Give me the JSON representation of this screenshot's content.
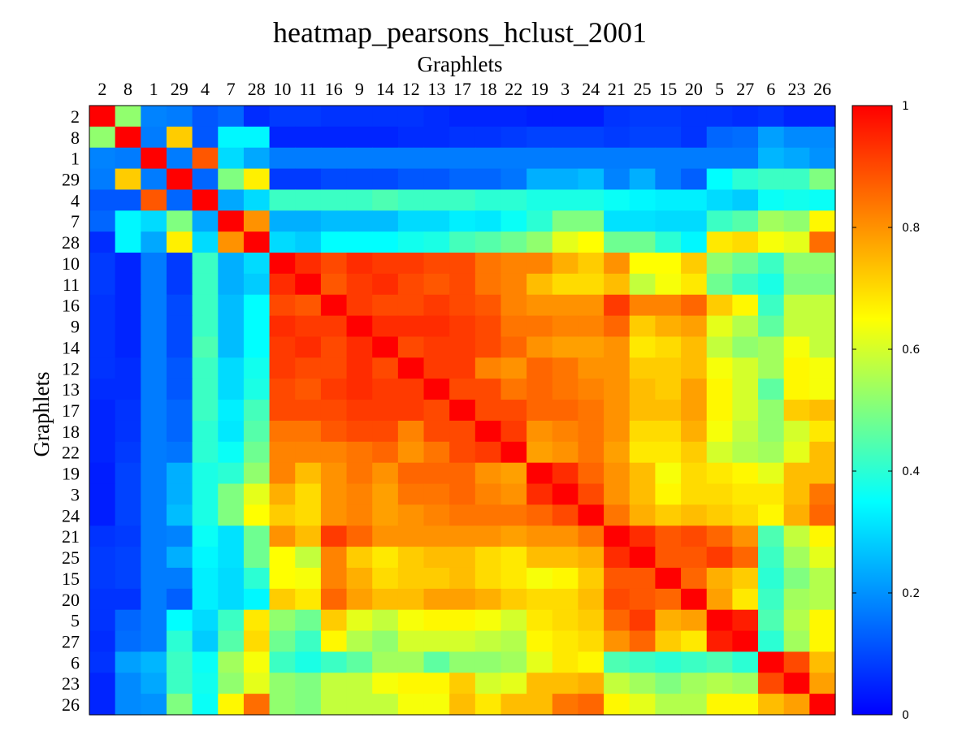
{
  "chart_data": {
    "type": "heatmap",
    "title": "heatmap_pearsons_hclust_2001",
    "xlabel": "Graphlets",
    "ylabel": "Graphlets",
    "labels": [
      "2",
      "8",
      "1",
      "29",
      "4",
      "7",
      "28",
      "10",
      "11",
      "16",
      "9",
      "14",
      "12",
      "13",
      "17",
      "18",
      "22",
      "19",
      "3",
      "24",
      "21",
      "25",
      "15",
      "20",
      "5",
      "27",
      "6",
      "23",
      "26"
    ],
    "colorbar": {
      "min": 0,
      "max": 1,
      "ticks": [
        0,
        0.2,
        0.4,
        0.6,
        0.8,
        1
      ],
      "tick_labels": [
        "0",
        "0.2",
        "0.4",
        "0.6",
        "0.8",
        "1"
      ],
      "colormap": "jet"
    },
    "values": [
      [
        1.0,
        0.52,
        0.18,
        0.17,
        0.12,
        0.14,
        0.06,
        0.08,
        0.08,
        0.07,
        0.07,
        0.07,
        0.07,
        0.06,
        0.05,
        0.05,
        0.05,
        0.04,
        0.04,
        0.04,
        0.07,
        0.08,
        0.08,
        0.07,
        0.07,
        0.06,
        0.07,
        0.05,
        0.05
      ],
      [
        0.52,
        1.0,
        0.17,
        0.72,
        0.12,
        0.34,
        0.34,
        0.05,
        0.05,
        0.05,
        0.05,
        0.05,
        0.06,
        0.06,
        0.07,
        0.07,
        0.08,
        0.09,
        0.09,
        0.09,
        0.08,
        0.09,
        0.09,
        0.07,
        0.14,
        0.15,
        0.22,
        0.19,
        0.19
      ],
      [
        0.18,
        0.17,
        1.0,
        0.17,
        0.88,
        0.3,
        0.23,
        0.17,
        0.17,
        0.17,
        0.17,
        0.17,
        0.17,
        0.17,
        0.17,
        0.17,
        0.17,
        0.17,
        0.17,
        0.17,
        0.17,
        0.17,
        0.17,
        0.17,
        0.17,
        0.17,
        0.25,
        0.23,
        0.2
      ],
      [
        0.17,
        0.72,
        0.17,
        1.0,
        0.14,
        0.5,
        0.67,
        0.08,
        0.08,
        0.1,
        0.1,
        0.1,
        0.12,
        0.12,
        0.14,
        0.14,
        0.16,
        0.24,
        0.24,
        0.26,
        0.18,
        0.24,
        0.17,
        0.13,
        0.35,
        0.4,
        0.42,
        0.42,
        0.5
      ],
      [
        0.12,
        0.12,
        0.88,
        0.14,
        1.0,
        0.23,
        0.3,
        0.42,
        0.42,
        0.42,
        0.42,
        0.44,
        0.42,
        0.42,
        0.42,
        0.4,
        0.4,
        0.38,
        0.38,
        0.38,
        0.36,
        0.34,
        0.33,
        0.33,
        0.3,
        0.28,
        0.36,
        0.37,
        0.36
      ],
      [
        0.14,
        0.34,
        0.3,
        0.5,
        0.23,
        1.0,
        0.8,
        0.24,
        0.24,
        0.26,
        0.26,
        0.26,
        0.3,
        0.3,
        0.33,
        0.32,
        0.36,
        0.4,
        0.5,
        0.5,
        0.31,
        0.31,
        0.3,
        0.3,
        0.42,
        0.45,
        0.54,
        0.52,
        0.66
      ],
      [
        0.06,
        0.34,
        0.23,
        0.67,
        0.3,
        0.8,
        1.0,
        0.3,
        0.28,
        0.35,
        0.35,
        0.35,
        0.37,
        0.38,
        0.43,
        0.45,
        0.48,
        0.52,
        0.62,
        0.65,
        0.48,
        0.48,
        0.4,
        0.34,
        0.68,
        0.7,
        0.64,
        0.62,
        0.85
      ],
      [
        0.08,
        0.05,
        0.17,
        0.08,
        0.42,
        0.24,
        0.3,
        1.0,
        0.94,
        0.9,
        0.94,
        0.92,
        0.92,
        0.9,
        0.9,
        0.84,
        0.82,
        0.82,
        0.76,
        0.72,
        0.8,
        0.65,
        0.65,
        0.72,
        0.52,
        0.48,
        0.42,
        0.52,
        0.52
      ],
      [
        0.08,
        0.05,
        0.17,
        0.08,
        0.42,
        0.24,
        0.28,
        0.94,
        1.0,
        0.88,
        0.92,
        0.94,
        0.9,
        0.88,
        0.9,
        0.84,
        0.82,
        0.74,
        0.7,
        0.7,
        0.74,
        0.58,
        0.64,
        0.68,
        0.48,
        0.42,
        0.38,
        0.5,
        0.5
      ],
      [
        0.07,
        0.05,
        0.17,
        0.1,
        0.42,
        0.26,
        0.35,
        0.9,
        0.88,
        1.0,
        0.92,
        0.9,
        0.9,
        0.92,
        0.9,
        0.88,
        0.82,
        0.8,
        0.8,
        0.8,
        0.92,
        0.82,
        0.82,
        0.86,
        0.72,
        0.66,
        0.42,
        0.58,
        0.58
      ],
      [
        0.07,
        0.05,
        0.17,
        0.1,
        0.42,
        0.26,
        0.35,
        0.94,
        0.92,
        0.92,
        1.0,
        0.94,
        0.94,
        0.94,
        0.92,
        0.9,
        0.84,
        0.84,
        0.82,
        0.82,
        0.86,
        0.72,
        0.76,
        0.78,
        0.62,
        0.56,
        0.46,
        0.58,
        0.58
      ],
      [
        0.07,
        0.05,
        0.17,
        0.1,
        0.44,
        0.26,
        0.35,
        0.92,
        0.94,
        0.9,
        0.94,
        1.0,
        0.9,
        0.92,
        0.92,
        0.9,
        0.86,
        0.8,
        0.78,
        0.78,
        0.8,
        0.68,
        0.7,
        0.74,
        0.58,
        0.52,
        0.54,
        0.64,
        0.58
      ],
      [
        0.07,
        0.06,
        0.17,
        0.12,
        0.42,
        0.3,
        0.37,
        0.92,
        0.9,
        0.9,
        0.94,
        0.9,
        1.0,
        0.92,
        0.92,
        0.82,
        0.8,
        0.86,
        0.84,
        0.8,
        0.8,
        0.72,
        0.72,
        0.74,
        0.64,
        0.6,
        0.54,
        0.66,
        0.64
      ],
      [
        0.06,
        0.06,
        0.17,
        0.12,
        0.42,
        0.3,
        0.38,
        0.9,
        0.88,
        0.92,
        0.94,
        0.92,
        0.92,
        1.0,
        0.9,
        0.9,
        0.84,
        0.86,
        0.84,
        0.82,
        0.8,
        0.74,
        0.72,
        0.78,
        0.66,
        0.6,
        0.46,
        0.66,
        0.64
      ],
      [
        0.05,
        0.07,
        0.17,
        0.14,
        0.42,
        0.33,
        0.43,
        0.9,
        0.9,
        0.9,
        0.92,
        0.92,
        0.92,
        0.9,
        1.0,
        0.9,
        0.9,
        0.86,
        0.86,
        0.84,
        0.8,
        0.74,
        0.74,
        0.78,
        0.66,
        0.6,
        0.52,
        0.72,
        0.74
      ],
      [
        0.05,
        0.07,
        0.17,
        0.14,
        0.4,
        0.32,
        0.45,
        0.84,
        0.84,
        0.88,
        0.9,
        0.9,
        0.82,
        0.9,
        0.9,
        1.0,
        0.92,
        0.8,
        0.82,
        0.84,
        0.8,
        0.7,
        0.7,
        0.76,
        0.64,
        0.58,
        0.52,
        0.6,
        0.68
      ],
      [
        0.05,
        0.08,
        0.17,
        0.16,
        0.4,
        0.36,
        0.48,
        0.82,
        0.82,
        0.82,
        0.84,
        0.86,
        0.8,
        0.84,
        0.9,
        0.92,
        1.0,
        0.78,
        0.8,
        0.84,
        0.78,
        0.68,
        0.68,
        0.72,
        0.6,
        0.56,
        0.54,
        0.62,
        0.74
      ],
      [
        0.04,
        0.09,
        0.17,
        0.24,
        0.38,
        0.4,
        0.52,
        0.82,
        0.74,
        0.8,
        0.84,
        0.8,
        0.86,
        0.86,
        0.86,
        0.8,
        0.78,
        1.0,
        0.94,
        0.86,
        0.8,
        0.74,
        0.64,
        0.7,
        0.68,
        0.66,
        0.62,
        0.74,
        0.74
      ],
      [
        0.04,
        0.09,
        0.17,
        0.24,
        0.38,
        0.5,
        0.62,
        0.76,
        0.7,
        0.8,
        0.82,
        0.78,
        0.84,
        0.84,
        0.86,
        0.82,
        0.8,
        0.94,
        1.0,
        0.9,
        0.8,
        0.74,
        0.66,
        0.7,
        0.7,
        0.68,
        0.68,
        0.74,
        0.84
      ],
      [
        0.04,
        0.09,
        0.17,
        0.26,
        0.38,
        0.5,
        0.65,
        0.72,
        0.7,
        0.8,
        0.82,
        0.78,
        0.8,
        0.82,
        0.84,
        0.84,
        0.84,
        0.86,
        0.9,
        1.0,
        0.84,
        0.76,
        0.72,
        0.74,
        0.72,
        0.7,
        0.66,
        0.76,
        0.86
      ],
      [
        0.07,
        0.08,
        0.17,
        0.18,
        0.36,
        0.31,
        0.48,
        0.8,
        0.74,
        0.92,
        0.86,
        0.8,
        0.8,
        0.8,
        0.8,
        0.8,
        0.78,
        0.8,
        0.8,
        0.84,
        1.0,
        0.94,
        0.88,
        0.9,
        0.86,
        0.8,
        0.44,
        0.58,
        0.66
      ],
      [
        0.08,
        0.09,
        0.17,
        0.24,
        0.34,
        0.31,
        0.48,
        0.65,
        0.58,
        0.82,
        0.72,
        0.68,
        0.72,
        0.74,
        0.74,
        0.7,
        0.68,
        0.74,
        0.74,
        0.76,
        0.94,
        1.0,
        0.88,
        0.88,
        0.92,
        0.86,
        0.42,
        0.54,
        0.62
      ],
      [
        0.08,
        0.09,
        0.17,
        0.17,
        0.33,
        0.3,
        0.4,
        0.65,
        0.64,
        0.82,
        0.76,
        0.7,
        0.72,
        0.72,
        0.74,
        0.7,
        0.68,
        0.64,
        0.66,
        0.72,
        0.88,
        0.88,
        1.0,
        0.86,
        0.76,
        0.72,
        0.4,
        0.5,
        0.56
      ],
      [
        0.07,
        0.07,
        0.17,
        0.13,
        0.33,
        0.3,
        0.34,
        0.72,
        0.68,
        0.86,
        0.78,
        0.74,
        0.74,
        0.78,
        0.78,
        0.76,
        0.72,
        0.7,
        0.7,
        0.74,
        0.9,
        0.88,
        0.86,
        1.0,
        0.78,
        0.68,
        0.42,
        0.54,
        0.56
      ],
      [
        0.07,
        0.14,
        0.17,
        0.35,
        0.3,
        0.42,
        0.68,
        0.52,
        0.48,
        0.72,
        0.62,
        0.58,
        0.64,
        0.66,
        0.66,
        0.64,
        0.6,
        0.68,
        0.7,
        0.72,
        0.86,
        0.92,
        0.76,
        0.78,
        1.0,
        0.96,
        0.44,
        0.56,
        0.66
      ],
      [
        0.06,
        0.15,
        0.17,
        0.4,
        0.28,
        0.45,
        0.7,
        0.48,
        0.42,
        0.66,
        0.56,
        0.52,
        0.6,
        0.6,
        0.6,
        0.58,
        0.56,
        0.66,
        0.68,
        0.7,
        0.8,
        0.86,
        0.72,
        0.68,
        0.96,
        1.0,
        0.4,
        0.54,
        0.66
      ],
      [
        0.07,
        0.22,
        0.25,
        0.42,
        0.36,
        0.54,
        0.64,
        0.42,
        0.38,
        0.42,
        0.46,
        0.54,
        0.54,
        0.46,
        0.52,
        0.52,
        0.54,
        0.62,
        0.68,
        0.66,
        0.44,
        0.42,
        0.4,
        0.42,
        0.44,
        0.4,
        1.0,
        0.9,
        0.74
      ],
      [
        0.05,
        0.19,
        0.23,
        0.42,
        0.37,
        0.52,
        0.62,
        0.52,
        0.5,
        0.58,
        0.58,
        0.64,
        0.66,
        0.66,
        0.72,
        0.6,
        0.62,
        0.74,
        0.74,
        0.76,
        0.58,
        0.54,
        0.5,
        0.54,
        0.56,
        0.54,
        0.9,
        1.0,
        0.78
      ],
      [
        0.05,
        0.19,
        0.2,
        0.5,
        0.36,
        0.66,
        0.85,
        0.52,
        0.5,
        0.58,
        0.58,
        0.58,
        0.64,
        0.64,
        0.74,
        0.68,
        0.74,
        0.74,
        0.84,
        0.86,
        0.66,
        0.62,
        0.56,
        0.56,
        0.66,
        0.66,
        0.74,
        0.78,
        1.0
      ]
    ]
  }
}
